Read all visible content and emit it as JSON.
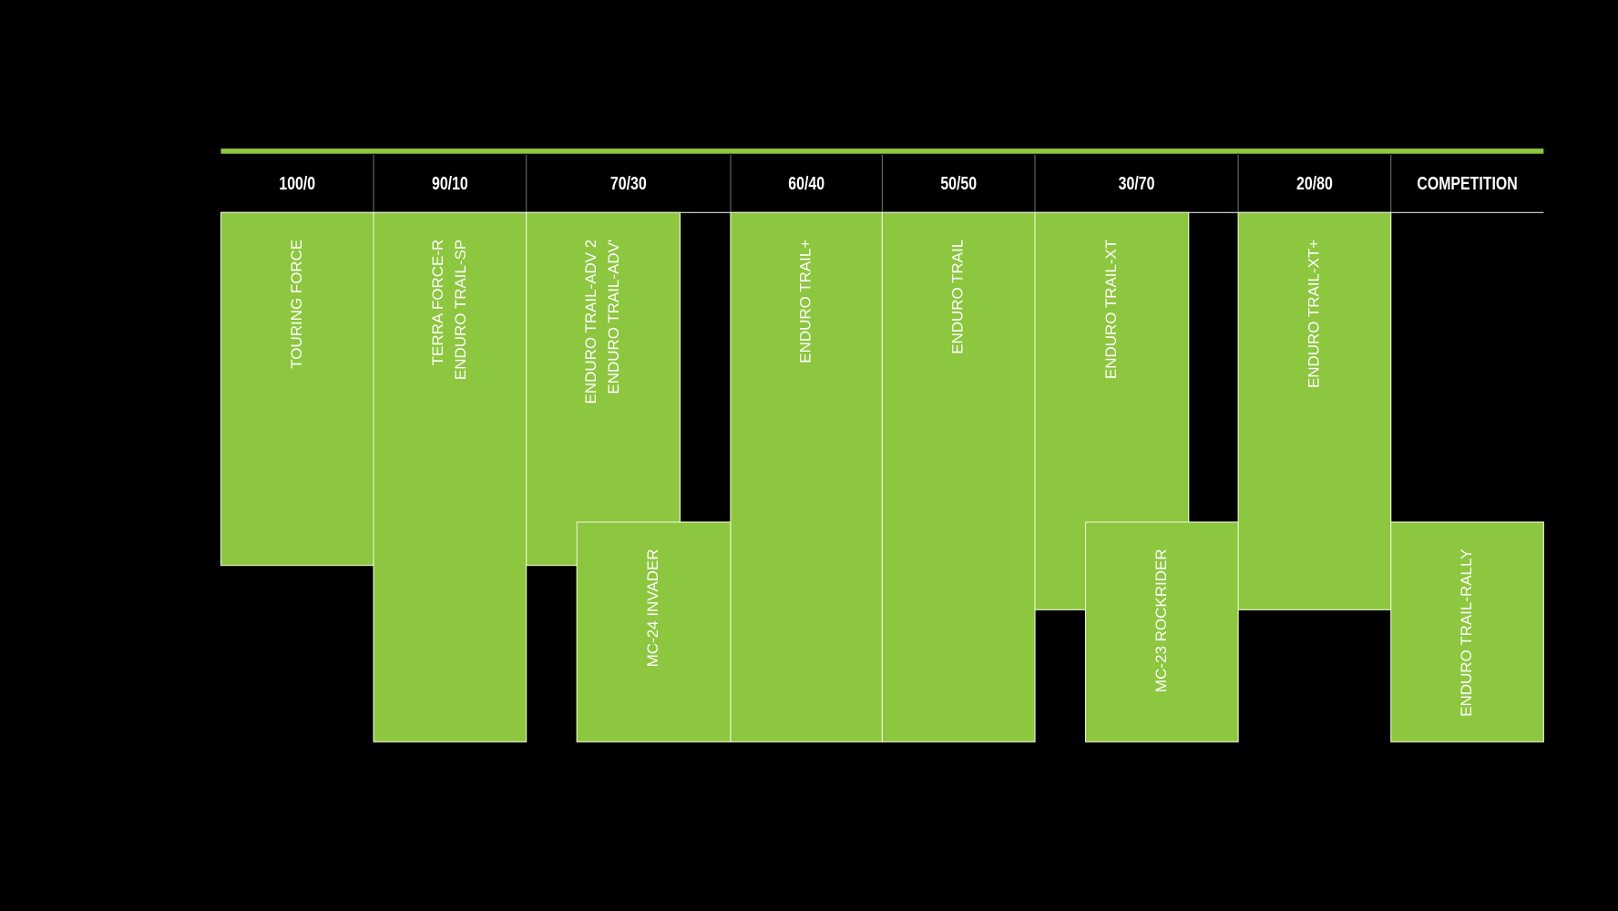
{
  "header": {
    "columns": [
      "100/0",
      "90/10",
      "70/30",
      "60/40",
      "50/50",
      "30/70",
      "20/80",
      "COMPETITION"
    ]
  },
  "tires": [
    {
      "lines": [
        "TOURING FORCE"
      ]
    },
    {
      "lines": [
        "TERRA FORCE-R",
        "ENDURO TRAIL-SP"
      ]
    },
    {
      "lines": [
        "ENDURO TRAIL-ADV 2",
        "ENDURO TRAIL-ADV'"
      ]
    },
    {
      "lines": [
        "MC-24 INVADER"
      ]
    },
    {
      "lines": [
        "ENDURO TRAIL+"
      ]
    },
    {
      "lines": [
        "ENDURO TRAIL"
      ]
    },
    {
      "lines": [
        "ENDURO TRAIL-XT"
      ]
    },
    {
      "lines": [
        "MC-23 ROCKRIDER"
      ]
    },
    {
      "lines": [
        "ENDURO TRAIL-XT+"
      ]
    },
    {
      "lines": [
        "ENDURO TRAIL-RALLY"
      ]
    }
  ]
}
